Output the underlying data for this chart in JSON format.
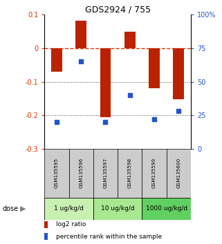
{
  "title": "GDS2924 / 755",
  "samples": [
    "GSM135595",
    "GSM135596",
    "GSM135597",
    "GSM135598",
    "GSM135599",
    "GSM135600"
  ],
  "log2_ratio": [
    -0.07,
    0.082,
    -0.205,
    0.05,
    -0.12,
    -0.152
  ],
  "percentile_rank": [
    20,
    65,
    20,
    40,
    22,
    28
  ],
  "dose_groups": [
    {
      "label": "1 ug/kg/d",
      "samples": [
        0,
        1
      ],
      "color": "#c8f0b0"
    },
    {
      "label": "10 ug/kg/d",
      "samples": [
        2,
        3
      ],
      "color": "#a8e890"
    },
    {
      "label": "1000 ug/kg/d",
      "samples": [
        4,
        5
      ],
      "color": "#60d060"
    }
  ],
  "ylim_left": [
    -0.3,
    0.1
  ],
  "ylim_right": [
    0,
    100
  ],
  "yticks_left": [
    -0.3,
    -0.2,
    -0.1,
    0,
    0.1
  ],
  "yticks_right": [
    0,
    25,
    50,
    75,
    100
  ],
  "ytick_labels_right": [
    "0",
    "25",
    "50",
    "75",
    "100%"
  ],
  "bar_color": "#bb2200",
  "dot_color": "#2255cc",
  "hline_color": "#dd3300",
  "grid_color": "#444444",
  "sample_box_color": "#cccccc",
  "background_color": "#ffffff",
  "bar_width": 0.45
}
